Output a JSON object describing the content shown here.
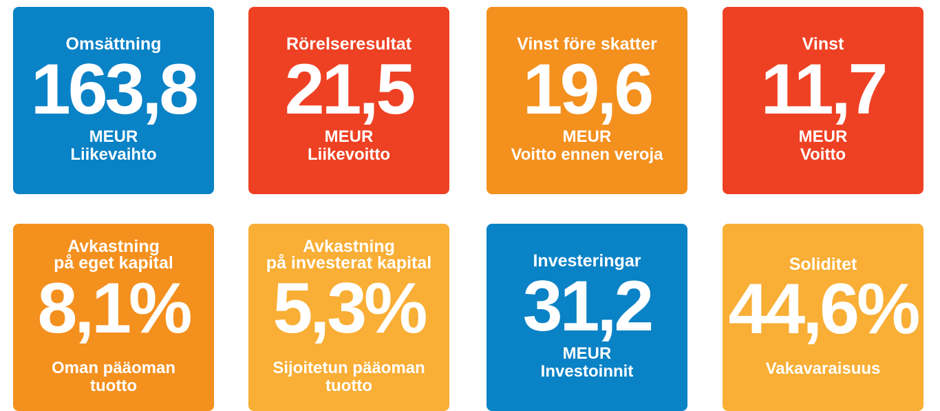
{
  "tiles": [
    {
      "color": "#0a82c6",
      "title": [
        "Omsättning"
      ],
      "value": "163,8",
      "lines": [
        "MEUR",
        "Liikevaihto"
      ]
    },
    {
      "color": "#ee4123",
      "title": [
        "Rörelseresultat"
      ],
      "value": "21,5",
      "lines": [
        "MEUR",
        "Liikevoitto"
      ]
    },
    {
      "color": "#f4901e",
      "title": [
        "Vinst före skatter"
      ],
      "value": "19,6",
      "lines": [
        "MEUR",
        "Voitto ennen veroja"
      ]
    },
    {
      "color": "#ee4123",
      "title": [
        "Vinst"
      ],
      "value": "11,7",
      "lines": [
        "MEUR",
        "Voitto"
      ]
    },
    {
      "color": "#f4901e",
      "title": [
        "Avkastning",
        "på eget kapital"
      ],
      "value": "8,1%",
      "lines": [
        "Oman pääoman",
        "tuotto"
      ]
    },
    {
      "color": "#f9ae35",
      "title": [
        "Avkastning",
        "på investerat kapital"
      ],
      "value": "5,3%",
      "lines": [
        "Sijoitetun pääoman",
        "tuotto"
      ]
    },
    {
      "color": "#0a82c6",
      "title": [
        "Investeringar"
      ],
      "value": "31,2",
      "lines": [
        "MEUR",
        "Investoinnit"
      ]
    },
    {
      "color": "#f9ae35",
      "title": [
        "Soliditet"
      ],
      "value": "44,6%",
      "lines": [
        "Vakavaraisuus"
      ]
    }
  ]
}
